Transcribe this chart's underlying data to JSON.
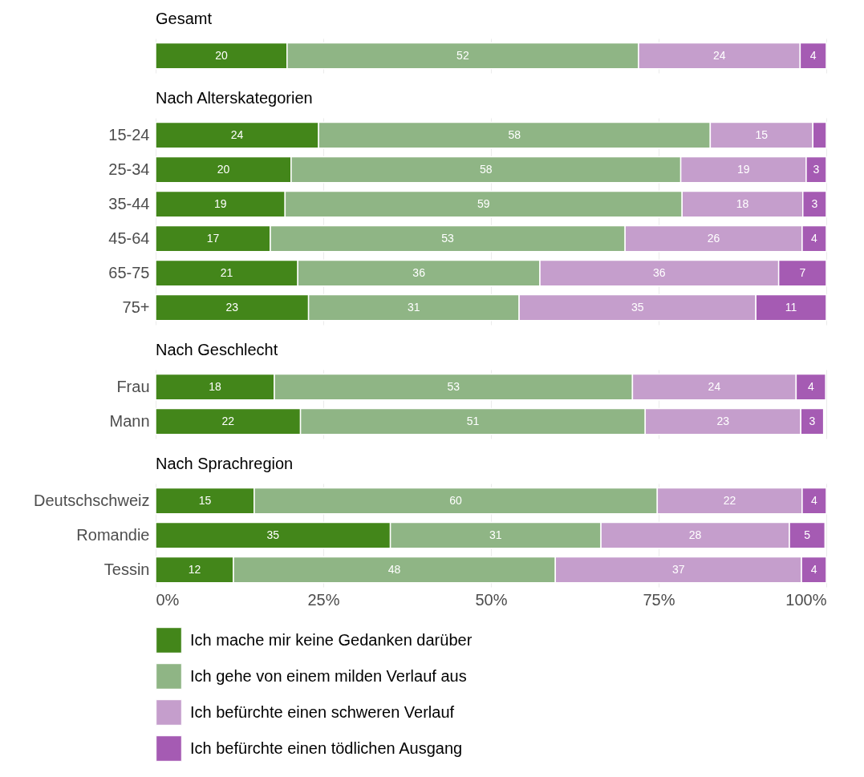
{
  "chart_data": [
    {
      "type": "bar",
      "title": "Gesamt",
      "orientation": "horizontal",
      "stacked": true,
      "categories": [
        null
      ],
      "xlim": [
        0,
        100
      ],
      "xticks": [
        {
          "value": 0,
          "label": null
        },
        {
          "value": 25,
          "label": null
        },
        {
          "value": 50,
          "label": null
        },
        {
          "value": 75,
          "label": null
        },
        {
          "value": 100,
          "label": null
        }
      ],
      "grid": "x",
      "tick_labels": false,
      "series": [
        {
          "color": "#43861a",
          "values": [
            19.6
          ],
          "value_labels": [
            "20"
          ]
        },
        {
          "color": "#8fb585",
          "values": [
            52.4
          ],
          "value_labels": [
            "52"
          ]
        },
        {
          "color": "#c59ecc",
          "values": [
            24.1
          ],
          "value_labels": [
            "24"
          ]
        },
        {
          "color": "#a55bb3",
          "values": [
            3.9
          ],
          "value_labels": [
            "4"
          ]
        }
      ]
    },
    {
      "type": "bar",
      "title": "Nach Alterskategorien",
      "orientation": "horizontal",
      "stacked": true,
      "categories": [
        "15-24",
        "25-34",
        "35-44",
        "45-64",
        "65-75",
        "75+"
      ],
      "xlim": [
        0,
        100
      ],
      "xticks": [
        {
          "value": 0,
          "label": null
        },
        {
          "value": 25,
          "label": null
        },
        {
          "value": 50,
          "label": null
        },
        {
          "value": 75,
          "label": null
        },
        {
          "value": 100,
          "label": null
        }
      ],
      "grid": "x",
      "tick_labels": "y",
      "series": [
        {
          "color": "#43861a",
          "values": [
            24.3,
            20.2,
            19.3,
            17.1,
            21.2,
            22.8
          ],
          "value_labels": [
            "24",
            "20",
            "19",
            "17",
            "21",
            "23"
          ]
        },
        {
          "color": "#8fb585",
          "values": [
            58.4,
            58.1,
            59.2,
            52.9,
            36.1,
            31.4
          ],
          "value_labels": [
            "58",
            "58",
            "59",
            "53",
            "36",
            "31"
          ]
        },
        {
          "color": "#c59ecc",
          "values": [
            15.3,
            18.7,
            18.0,
            26.4,
            35.6,
            35.3
          ],
          "value_labels": [
            "15",
            "19",
            "18",
            "26",
            "36",
            "35"
          ]
        },
        {
          "color": "#a55bb3",
          "values": [
            2.0,
            3.0,
            3.5,
            3.6,
            7.1,
            10.5
          ],
          "value_labels": [
            null,
            "3",
            "3",
            "4",
            "7",
            "11"
          ]
        }
      ]
    },
    {
      "type": "bar",
      "title": "Nach Geschlecht",
      "orientation": "horizontal",
      "stacked": true,
      "categories": [
        "Frau",
        "Mann"
      ],
      "xlim": [
        0,
        100
      ],
      "xticks": [
        {
          "value": 0,
          "label": null
        },
        {
          "value": 25,
          "label": null
        },
        {
          "value": 50,
          "label": null
        },
        {
          "value": 75,
          "label": null
        },
        {
          "value": 100,
          "label": null
        }
      ],
      "grid": "x",
      "tick_labels": "y",
      "series": [
        {
          "color": "#43861a",
          "values": [
            17.7,
            21.6
          ],
          "value_labels": [
            "18",
            "22"
          ]
        },
        {
          "color": "#8fb585",
          "values": [
            53.4,
            51.4
          ],
          "value_labels": [
            "53",
            "51"
          ]
        },
        {
          "color": "#c59ecc",
          "values": [
            24.4,
            23.2
          ],
          "value_labels": [
            "24",
            "23"
          ]
        },
        {
          "color": "#a55bb3",
          "values": [
            4.4,
            3.4
          ],
          "value_labels": [
            "4",
            "3"
          ]
        }
      ]
    },
    {
      "type": "bar",
      "title": "Nach Sprachregion",
      "orientation": "horizontal",
      "stacked": true,
      "categories": [
        "Deutschschweiz",
        "Romandie",
        "Tessin"
      ],
      "xlim": [
        0,
        100
      ],
      "xticks": [
        {
          "value": 0,
          "label": "0%"
        },
        {
          "value": 25,
          "label": "25%"
        },
        {
          "value": 50,
          "label": "50%"
        },
        {
          "value": 75,
          "label": "75%"
        },
        {
          "value": 100,
          "label": "100%"
        }
      ],
      "grid": "x",
      "legend": "bottom",
      "series": [
        {
          "name": "Ich mache mir keine Gedanken darüber",
          "color": "#43861a",
          "values": [
            14.7,
            35.0,
            11.6
          ],
          "value_labels": [
            "15",
            "35",
            "12"
          ]
        },
        {
          "name": "Ich gehe von einem milden Verlauf aus",
          "color": "#8fb585",
          "values": [
            60.1,
            31.4,
            48.0
          ],
          "value_labels": [
            "60",
            "31",
            "48"
          ]
        },
        {
          "name": "Ich befürchte einen schweren Verlauf",
          "color": "#c59ecc",
          "values": [
            21.6,
            28.1,
            36.7
          ],
          "value_labels": [
            "22",
            "28",
            "37"
          ]
        },
        {
          "name": "Ich befürchte einen tödlichen Ausgang",
          "color": "#a55bb3",
          "values": [
            3.6,
            5.3,
            3.7
          ],
          "value_labels": [
            "4",
            "5",
            "4"
          ]
        }
      ]
    }
  ]
}
